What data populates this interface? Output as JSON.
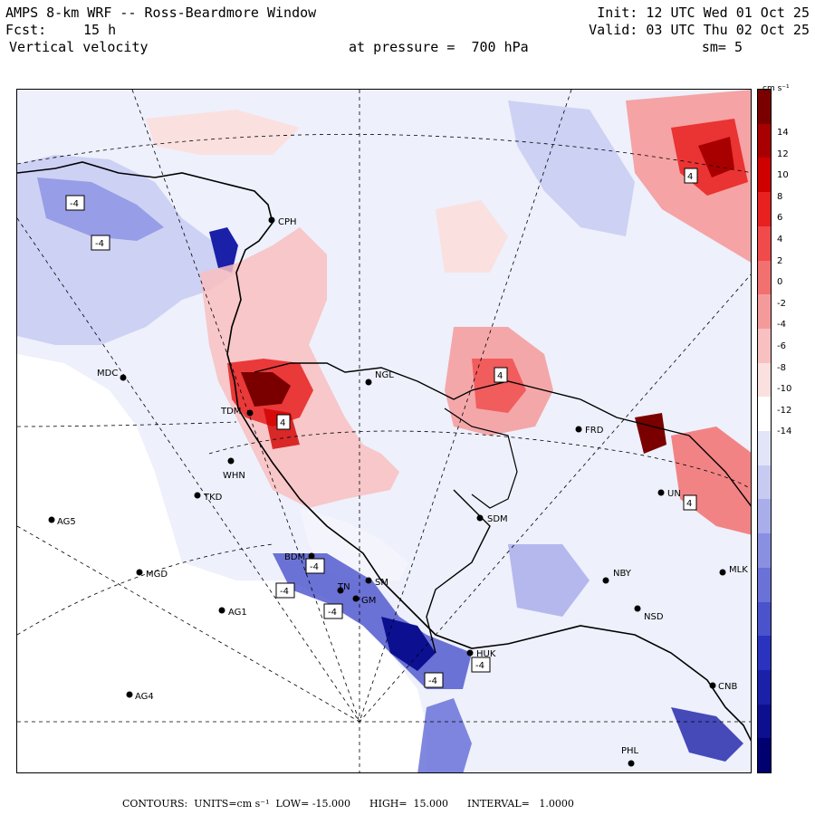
{
  "header": {
    "title": "AMPS 8-km WRF -- Ross-Beardmore Window",
    "fcst_label": "Fcst:",
    "fcst_value": "15 h",
    "variable": "Vertical velocity",
    "init": "Init: 12 UTC Wed 01 Oct 25",
    "valid": "Valid: 03 UTC Thu 02 Oct 25",
    "level": "at pressure =  700 hPa",
    "smoothing": "sm= 5"
  },
  "colorbar": {
    "units": "cm s⁻¹",
    "ticks": [
      "14",
      "12",
      "10",
      "8",
      "6",
      "4",
      "2",
      "0",
      "-2",
      "-4",
      "-6",
      "-8",
      "-10",
      "-12",
      "-14"
    ],
    "colors": [
      "#7a0000",
      "#a80000",
      "#cf0000",
      "#e82020",
      "#f04a4a",
      "#f27070",
      "#f59a9a",
      "#f8c0c0",
      "#fbe0e0",
      "#ffffff",
      "#e2e5f8",
      "#c7cbf2",
      "#a9aeea",
      "#8990e2",
      "#6a72d8",
      "#4a52cc",
      "#2a33c0",
      "#1a20a8",
      "#0c1090",
      "#000070"
    ]
  },
  "footer": {
    "text": "CONTOURS:  UNITS=cm s⁻¹  LOW= -15.000      HIGH=  15.000      INTERVAL=   1.0000"
  },
  "stations": [
    {
      "id": "CPH",
      "label": "CPH"
    },
    {
      "id": "MDC",
      "label": "MDC"
    },
    {
      "id": "NGL",
      "label": "NGL"
    },
    {
      "id": "TDM",
      "label": "TDM"
    },
    {
      "id": "WHN",
      "label": "WHN"
    },
    {
      "id": "TKD",
      "label": "TKD"
    },
    {
      "id": "AG5",
      "label": "AG5"
    },
    {
      "id": "MGD",
      "label": "MGD"
    },
    {
      "id": "AG1",
      "label": "AG1"
    },
    {
      "id": "AG4",
      "label": "AG4"
    },
    {
      "id": "BDM",
      "label": "BDM"
    },
    {
      "id": "SM",
      "label": "SM"
    },
    {
      "id": "GM",
      "label": "GM"
    },
    {
      "id": "TN",
      "label": "TN"
    },
    {
      "id": "SDM",
      "label": "SDM"
    },
    {
      "id": "FRD",
      "label": "FRD"
    },
    {
      "id": "NBY",
      "label": "NBY"
    },
    {
      "id": "NSD",
      "label": "NSD"
    },
    {
      "id": "HUK",
      "label": "HUK"
    },
    {
      "id": "PHL",
      "label": "PHL"
    },
    {
      "id": "CNB",
      "label": "CNB"
    },
    {
      "id": "UN",
      "label": "UN"
    },
    {
      "id": "MLK",
      "label": "MLK"
    }
  ],
  "contour_labels": [
    {
      "id": "c1",
      "text": "-4"
    },
    {
      "id": "c2",
      "text": "-4"
    },
    {
      "id": "c3",
      "text": "4"
    },
    {
      "id": "c4",
      "text": "4"
    },
    {
      "id": "c5",
      "text": "4"
    },
    {
      "id": "c6",
      "text": "-4"
    },
    {
      "id": "c7",
      "text": "-4"
    },
    {
      "id": "c8",
      "text": "-4"
    },
    {
      "id": "c9",
      "text": "-4"
    },
    {
      "id": "c10",
      "text": "-4"
    },
    {
      "id": "c11",
      "text": "4"
    }
  ]
}
